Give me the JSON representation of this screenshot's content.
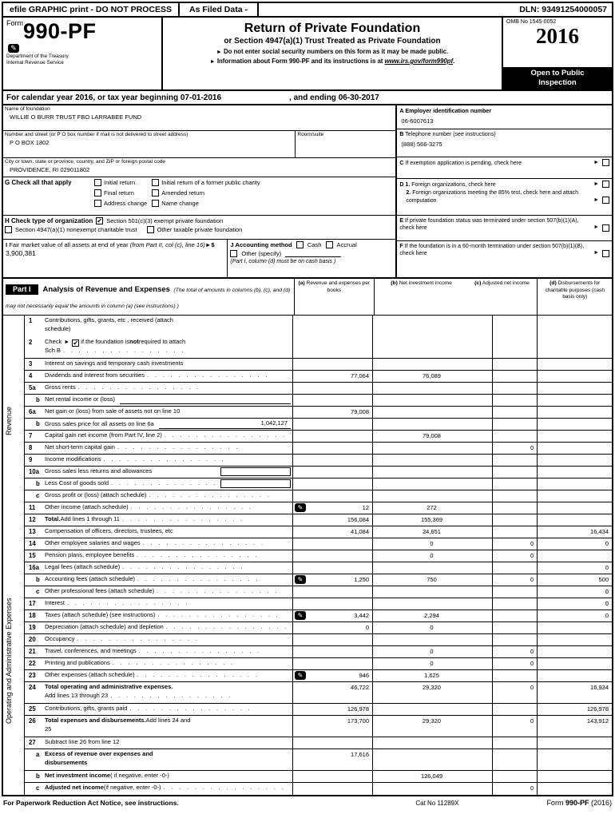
{
  "icons": {
    "arrow": "►",
    "check": "✔",
    "attachment": "✎",
    "stamp": "✎"
  },
  "topbar": {
    "left": "efile GRAPHIC print - DO NOT PROCESS",
    "mid": "As Filed Data -",
    "dln": "DLN: 93491254000057"
  },
  "header": {
    "form_word": "Form",
    "form_number": "990-PF",
    "dept1": "Department of the Treasury",
    "dept2": "Internal Revenue Service",
    "title": "Return of Private Foundation",
    "subtitle": "or Section 4947(a)(1) Trust Treated as Private Foundation",
    "bullet1": "Do not enter social security numbers on this form as it may be made public.",
    "bullet2_pre": "Information about Form 990-PF and its instructions is at ",
    "bullet2_url": "www.irs.gov/form990pf",
    "bullet2_dot": ".",
    "omb": "OMB No 1545-0052",
    "year": "2016",
    "open_to_public": "Open to Public",
    "inspection": "Inspection"
  },
  "calendar_line": {
    "pre": "For calendar year 2016, or tax year beginning 07-01-2016",
    "post": ", and ending 06-30-2017"
  },
  "entity": {
    "name_label": "Name of foundation",
    "name_value": "WILLIE O BURR TRUST FBO LARRABEE FUND",
    "street_label": "Number and street (or P O box number if mail is not delivered to street address)",
    "street_value": "P O BOX 1802",
    "room_label": "Room/suite",
    "city_label": "City or town, state or province, country, and ZIP or foreign postal code",
    "city_value": "PROVIDENCE, RI  029011802",
    "a_letter": "A",
    "a_text": "Employer identification number",
    "ein_value": "06-6007613",
    "b_letter": "B",
    "b_text": "Telephone number (see instructions)",
    "phone_value": "(888) 566-3275",
    "c_letter": "C",
    "c_text": "If exemption application is pending, check here",
    "d_letter": "D",
    "d1_num": "1.",
    "d1_text": "Foreign organizations, check here",
    "d2_num": "2.",
    "d2_text": "Foreign organizations meeting the 85% test, check here and attach computation",
    "e_letter": "E",
    "e_text": "If private foundation status was terminated under section 507(b)(1)(A), check here",
    "f_letter": "F",
    "f_text": "If the foundation is in a 60-month termination under section 507(b)(1)(B), check here"
  },
  "g": {
    "letter": "G",
    "label": "Check all that apply",
    "options": [
      "Initial return",
      "Initial return of a former public charity",
      "Final return",
      "Amended return",
      "Address change",
      "Name change"
    ]
  },
  "h": {
    "letter": "H",
    "label": "Check type of organization",
    "opt1": "Section 501(c)(3) exempt private foundation",
    "opt2": "Section 4947(a)(1) nonexempt charitable trust",
    "opt3": "Other taxable private foundation"
  },
  "i": {
    "letter": "I",
    "text": "Fair market value of all assets at end of year ",
    "italic": "(from Part II, col (c), line 16)",
    "dollar": "$",
    "value": "3,900,381"
  },
  "j": {
    "letter": "J",
    "label": "Accounting method",
    "cash": "Cash",
    "accrual": "Accrual",
    "other": "Other (specify)",
    "note": "(Part I, column (d) must be on cash basis )"
  },
  "part1": {
    "tag": "Part I",
    "heading": "Analysis of Revenue and Expenses",
    "heading_note": "(The total of amounts in columns (b), (c), and (d) may not necessarily equal the amounts in column (a) (see instructions) )",
    "columns": [
      {
        "letter": "(a)",
        "text": "Revenue and expenses per books"
      },
      {
        "letter": "(b)",
        "text": "Net investment income"
      },
      {
        "letter": "(c)",
        "text": "Adjusted net income"
      },
      {
        "letter": "(d)",
        "text": "Disbursements for charitable purposes (cash basis only)"
      }
    ],
    "side_revenue": "Revenue",
    "side_expenses": "Operating and Administrative Expenses",
    "leader": ".     .     .     .     .     .     .     .     .     .     .     .     .     .     .     .",
    "rows": [
      {
        "num": "1",
        "h": 2,
        "nb": true,
        "label": "Contributions, gifts, grants, etc , received (attach",
        "label2": "schedule)"
      },
      {
        "num": "2",
        "h": 2,
        "check_pre": "Check",
        "checked": true,
        "check_post1": "if the foundation is ",
        "check_bold": "not",
        "check_post2": " required to attach",
        "label2": "Sch  B",
        "dots2": true
      },
      {
        "num": "3",
        "label": "Interest on savings and temporary cash investments"
      },
      {
        "num": "4",
        "label": "Dividends and interest from securities",
        "dots": true,
        "a": "77,064",
        "b": "76,089"
      },
      {
        "num": "5a",
        "label": "Gross rents",
        "dots": true
      },
      {
        "num": "b",
        "label": "Net rental income or (loss)",
        "inbox": "",
        "inbox_type": "u"
      },
      {
        "num": "6a",
        "label": "Net gain or (loss) from sale of assets not on line 10",
        "a": "79,008"
      },
      {
        "num": "b",
        "label": "Gross sales price for all assets on line 6a",
        "inbox": "1,042,127",
        "inbox_type": "u"
      },
      {
        "num": "7",
        "label": "Capital gain net income (from Part IV, line 2)",
        "dots": true,
        "b": "79,008"
      },
      {
        "num": "8",
        "label": "Net short-term capital gain",
        "dots": true,
        "c": "0"
      },
      {
        "num": "9",
        "label": "Income modifications",
        "dots": true
      },
      {
        "num": "10a",
        "label": "Gross sales less returns and allowances",
        "inbox": "",
        "inbox_type": "box"
      },
      {
        "num": "b",
        "label": "Less  Cost of goods sold",
        "dots": true,
        "inbox": "",
        "inbox_type": "box"
      },
      {
        "num": "c",
        "label": "Gross profit or (loss) (attach schedule)",
        "dots": true
      },
      {
        "num": "11",
        "label": "Other income (attach schedule)",
        "dots": true,
        "icon": true,
        "a": "12",
        "b": "272"
      },
      {
        "num": "12",
        "label_bold": "Total.",
        "label": " Add lines 1 through 11",
        "dots": true,
        "a": "156,084",
        "b": "155,369"
      },
      {
        "num": "13",
        "label": "Compensation of officers, directors, trustees, etc",
        "a": "41,084",
        "b": "24,651",
        "d": "16,434"
      },
      {
        "num": "14",
        "label": "Other employee salaries and wages",
        "dots": true,
        "b": "0",
        "c": "0",
        "d": "0"
      },
      {
        "num": "15",
        "label": "Pension plans, employee benefits",
        "dots": true,
        "b": "0",
        "c": "0"
      },
      {
        "num": "16a",
        "label": "Legal fees (attach schedule)",
        "dots": true,
        "d": "0"
      },
      {
        "num": "b",
        "label": "Accounting fees (attach schedule)",
        "dots": true,
        "icon": true,
        "a": "1,250",
        "b": "750",
        "c": "0",
        "d": "500"
      },
      {
        "num": "c",
        "label": "Other professional fees (attach schedule)",
        "dots": true,
        "d": "0"
      },
      {
        "num": "17",
        "label": "Interest",
        "dots": true,
        "d": "0"
      },
      {
        "num": "18",
        "label": "Taxes (attach schedule) (see instructions)",
        "dots": true,
        "icon": true,
        "a": "3,442",
        "b": "2,294",
        "d": "0"
      },
      {
        "num": "19",
        "label": "Depreciation (attach schedule) and depletion",
        "dots": true,
        "a": "0",
        "b": "0"
      },
      {
        "num": "20",
        "label": "Occupancy",
        "dots": true
      },
      {
        "num": "21",
        "label": "Travel, conferences, and meetings",
        "dots": true,
        "b": "0",
        "c": "0"
      },
      {
        "num": "22",
        "label": "Printing and publications",
        "dots": true,
        "b": "0",
        "c": "0"
      },
      {
        "num": "23",
        "label": "Other expenses (attach schedule)",
        "dots": true,
        "icon": true,
        "a": "946",
        "b": "1,625"
      },
      {
        "num": "24",
        "h": 2,
        "label_bold": "Total operating and administrative expenses.",
        "label2": "Add lines 13 through 23",
        "dots2": true,
        "a": "46,722",
        "b": "29,320",
        "c": "0",
        "d": "16,934"
      },
      {
        "num": "25",
        "label": "Contributions, gifts, grants paid",
        "dots": true,
        "a": "126,978",
        "d": "126,978"
      },
      {
        "num": "26",
        "h": 2,
        "label_bold": "Total expenses and disbursements.",
        "label": " Add lines 24 and",
        "label2": "25",
        "a": "173,700",
        "b": "29,320",
        "c": "0",
        "d": "143,912"
      },
      {
        "num": "27",
        "label": "Subtract line 26 from line 12"
      },
      {
        "num": "a",
        "h": 2,
        "label_bold": "Excess of revenue over expenses and",
        "label2_bold": "disbursements",
        "a": "17,616"
      },
      {
        "num": "b",
        "label_bold": "Net investment income",
        "label": " ( if negative, enter -0-)",
        "b": "126,049"
      },
      {
        "num": "c",
        "label_bold": "Adjusted net income",
        "label": " (if negative, enter -0-)",
        "dots": true,
        "c": "0"
      }
    ]
  },
  "footer": {
    "left": "For Paperwork Reduction Act Notice, see instructions.",
    "cat": "Cat  No  11289X",
    "right_pre": "Form",
    "right_bold": "990-PF",
    "right_post": "(2016)"
  }
}
